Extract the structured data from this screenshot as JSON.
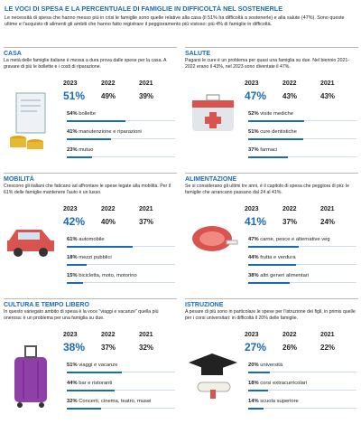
{
  "header": {
    "title": "LE VOCI DI SPESA E LA PERCENTUALE DI FAMIGLIE IN DIFFICOLTÀ NEL SOSTENERLE",
    "intro": "Le necessità di spesa che hanno messo più in crisi le famiglie sono quelle relative alla casa (il 51% ha difficoltà a sostenerle) e alla salute (47%). Sono queste ultime e l'acquisto di alimenti gli ambiti che hanno fatto registrare il peggioramento più vistoso: più 4% di famiglie in difficoltà."
  },
  "sections": [
    {
      "title": "CASA",
      "text": "La metà delle famiglie italiane è messa a dura prova dalle spese per la casa. A gravare di più le bollette e i costi di riparazione.",
      "years": [
        {
          "year": "2023",
          "label": "51%"
        },
        {
          "year": "2022",
          "label": "49%"
        },
        {
          "year": "2021",
          "label": "39%"
        }
      ],
      "items": [
        {
          "value": 54,
          "label": "54%",
          "name": "bollette"
        },
        {
          "value": 41,
          "label": "41%",
          "name": "manutenzione e riparazioni"
        },
        {
          "value": 23,
          "label": "23%",
          "name": "mutuo"
        }
      ]
    },
    {
      "title": "SALUTE",
      "text": "Pagarsi le cure è un problema per quasi una famiglia su due. Nel biennio 2021-2022 erano il 43%, nel 2023 sono diventate il 47%.",
      "years": [
        {
          "year": "2023",
          "label": "47%"
        },
        {
          "year": "2022",
          "label": "43%"
        },
        {
          "year": "2021",
          "label": "43%"
        }
      ],
      "items": [
        {
          "value": 52,
          "label": "52%",
          "name": "visite mediche"
        },
        {
          "value": 51,
          "label": "51%",
          "name": "cure dentistiche"
        },
        {
          "value": 37,
          "label": "37%",
          "name": "farmaci"
        }
      ]
    },
    {
      "title": "MOBILITÀ",
      "text": "Crescono gli italiani che faticano ad affrontare le spese legate alla mobilità. Per il 61% delle famiglie mantenere l'auto è un lusso.",
      "years": [
        {
          "year": "2023",
          "label": "42%"
        },
        {
          "year": "2022",
          "label": "40%"
        },
        {
          "year": "2021",
          "label": "37%"
        }
      ],
      "items": [
        {
          "value": 61,
          "label": "61%",
          "name": "automobile"
        },
        {
          "value": 18,
          "label": "18%",
          "name": "mezzi pubblici"
        },
        {
          "value": 15,
          "label": "15%",
          "name": "bicicletta, moto, motorino"
        }
      ]
    },
    {
      "title": "ALIMENTAZIONE",
      "text": "Se si considerano gli ultimi tre anni, è il capitolo di spesa che peggiora di più: le famiglie che arrancano passano dal 24 al 41%.",
      "years": [
        {
          "year": "2023",
          "label": "41%"
        },
        {
          "year": "2022",
          "label": "37%"
        },
        {
          "year": "2021",
          "label": "24%"
        }
      ],
      "items": [
        {
          "value": 47,
          "label": "47%",
          "name": "carne, pesce e alternative veg"
        },
        {
          "value": 44,
          "label": "44%",
          "name": "frutta e verdura"
        },
        {
          "value": 38,
          "label": "38%",
          "name": "altri generi alimentari"
        }
      ]
    },
    {
      "title": "CULTURA E TEMPO LIBERO",
      "text": "In questo variegato ambito di spesa è la voce \"viaggi e vacanze\" quella più onerosa: è un problema per una famiglia su due.",
      "years": [
        {
          "year": "2023",
          "label": "38%"
        },
        {
          "year": "2022",
          "label": "37%"
        },
        {
          "year": "2021",
          "label": "32%"
        }
      ],
      "items": [
        {
          "value": 51,
          "label": "51%",
          "name": "viaggi e vacanze"
        },
        {
          "value": 44,
          "label": "44%",
          "name": "bar e ristoranti"
        },
        {
          "value": 32,
          "label": "32%",
          "name": "Concerti, cinema, teatro, musei"
        }
      ]
    },
    {
      "title": "ISTRUZIONE",
      "text": "A pesare di più sono in particolare le spese per l'istruzione dei figli, in primis quelle per i corsi universitari: in difficoltà il 20% delle famiglie.",
      "years": [
        {
          "year": "2023",
          "label": "27%"
        },
        {
          "year": "2022",
          "label": "26%"
        },
        {
          "year": "2021",
          "label": "22%"
        }
      ],
      "items": [
        {
          "value": 20,
          "label": "20%",
          "name": "università"
        },
        {
          "value": 18,
          "label": "18%",
          "name": "corsi extracurricolari"
        },
        {
          "value": 14,
          "label": "14%",
          "name": "scuola superiore"
        }
      ]
    }
  ]
}
